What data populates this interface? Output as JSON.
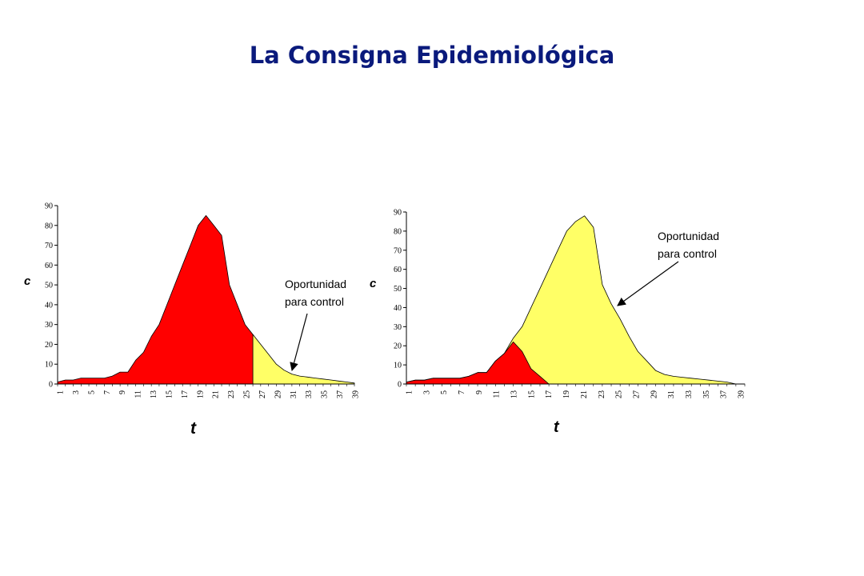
{
  "title": "La Consigna Epidemiológica",
  "colors": {
    "title": "#0a1a7c",
    "red": "#ff0000",
    "yellow": "#ffff66",
    "outline": "#000000"
  },
  "chart_data": [
    {
      "type": "area",
      "ylabel": "c",
      "xlabel": "t",
      "ylim": [
        0,
        90
      ],
      "yticks": [
        0,
        10,
        20,
        30,
        40,
        50,
        60,
        70,
        80,
        90
      ],
      "xlim": [
        1,
        39
      ],
      "xticks": [
        "1",
        "3",
        "5",
        "7",
        "9",
        "11",
        "13",
        "15",
        "17",
        "19",
        "21",
        "23",
        "25",
        "27",
        "29",
        "31",
        "33",
        "35",
        "37",
        "39"
      ],
      "annotation": {
        "lines": [
          "Oportunidad",
          "para control"
        ]
      },
      "series": [
        {
          "color": "#ff0000",
          "points": [
            [
              1,
              1
            ],
            [
              2,
              2
            ],
            [
              3,
              2
            ],
            [
              4,
              3
            ],
            [
              5,
              3
            ],
            [
              6,
              3
            ],
            [
              7,
              3
            ],
            [
              8,
              4
            ],
            [
              9,
              6
            ],
            [
              10,
              6
            ],
            [
              11,
              12
            ],
            [
              12,
              16
            ],
            [
              13,
              24
            ],
            [
              14,
              30
            ],
            [
              15,
              40
            ],
            [
              16,
              50
            ],
            [
              17,
              60
            ],
            [
              18,
              70
            ],
            [
              19,
              80
            ],
            [
              20,
              85
            ],
            [
              21,
              80
            ],
            [
              22,
              75
            ],
            [
              23,
              50
            ],
            [
              24,
              40
            ],
            [
              25,
              30
            ],
            [
              26,
              25
            ],
            [
              27,
              15
            ],
            [
              28,
              6
            ],
            [
              29,
              2
            ],
            [
              30,
              1
            ],
            [
              31,
              0
            ],
            [
              39,
              0
            ]
          ]
        },
        {
          "color": "#ffff66",
          "points": [
            [
              26,
              25
            ],
            [
              27,
              20
            ],
            [
              28,
              15
            ],
            [
              29,
              10
            ],
            [
              30,
              7
            ],
            [
              31,
              5
            ],
            [
              32,
              4
            ],
            [
              33,
              3.5
            ],
            [
              34,
              3
            ],
            [
              35,
              2.5
            ],
            [
              36,
              2
            ],
            [
              37,
              1.5
            ],
            [
              38,
              1
            ],
            [
              39,
              0.5
            ]
          ]
        }
      ]
    },
    {
      "type": "area",
      "ylabel": "c",
      "xlabel": "t",
      "ylim": [
        0,
        90
      ],
      "yticks": [
        0,
        10,
        20,
        30,
        40,
        50,
        60,
        70,
        80,
        90
      ],
      "xlim": [
        1,
        39
      ],
      "xticks": [
        "1",
        "3",
        "5",
        "7",
        "9",
        "11",
        "13",
        "15",
        "17",
        "19",
        "21",
        "23",
        "25",
        "27",
        "29",
        "31",
        "33",
        "35",
        "37",
        "39"
      ],
      "annotation": {
        "lines": [
          "Oportunidad",
          "para control"
        ]
      },
      "series": [
        {
          "color": "#ffff66",
          "points": [
            [
              1,
              1
            ],
            [
              2,
              2
            ],
            [
              3,
              2
            ],
            [
              4,
              3
            ],
            [
              5,
              3
            ],
            [
              6,
              3
            ],
            [
              7,
              3
            ],
            [
              8,
              4
            ],
            [
              9,
              6
            ],
            [
              10,
              6
            ],
            [
              11,
              12
            ],
            [
              12,
              16
            ],
            [
              13,
              24
            ],
            [
              14,
              30
            ],
            [
              15,
              40
            ],
            [
              16,
              50
            ],
            [
              17,
              60
            ],
            [
              18,
              70
            ],
            [
              19,
              80
            ],
            [
              20,
              85
            ],
            [
              21,
              88
            ],
            [
              22,
              82
            ],
            [
              23,
              52
            ],
            [
              24,
              42
            ],
            [
              25,
              34
            ],
            [
              26,
              25
            ],
            [
              27,
              17
            ],
            [
              28,
              12
            ],
            [
              29,
              7
            ],
            [
              30,
              5
            ],
            [
              31,
              4
            ],
            [
              32,
              3.5
            ],
            [
              33,
              3
            ],
            [
              34,
              2.5
            ],
            [
              35,
              2
            ],
            [
              36,
              1.5
            ],
            [
              37,
              1
            ],
            [
              38,
              0
            ],
            [
              39,
              0
            ]
          ]
        },
        {
          "color": "#ff0000",
          "points": [
            [
              1,
              1
            ],
            [
              2,
              2
            ],
            [
              3,
              2
            ],
            [
              4,
              3
            ],
            [
              5,
              3
            ],
            [
              6,
              3
            ],
            [
              7,
              3
            ],
            [
              8,
              4
            ],
            [
              9,
              6
            ],
            [
              10,
              6
            ],
            [
              11,
              12
            ],
            [
              12,
              16
            ],
            [
              13,
              22
            ],
            [
              14,
              17
            ],
            [
              15,
              8
            ],
            [
              16,
              4
            ],
            [
              17,
              0
            ]
          ]
        }
      ]
    }
  ]
}
